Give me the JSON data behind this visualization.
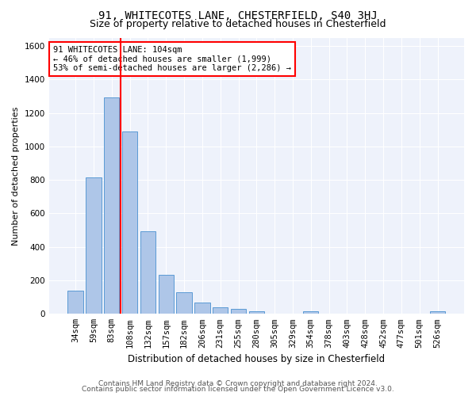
{
  "title1": "91, WHITECOTES LANE, CHESTERFIELD, S40 3HJ",
  "title2": "Size of property relative to detached houses in Chesterfield",
  "xlabel": "Distribution of detached houses by size in Chesterfield",
  "ylabel": "Number of detached properties",
  "categories": [
    "34sqm",
    "59sqm",
    "83sqm",
    "108sqm",
    "132sqm",
    "157sqm",
    "182sqm",
    "206sqm",
    "231sqm",
    "255sqm",
    "280sqm",
    "305sqm",
    "329sqm",
    "354sqm",
    "378sqm",
    "403sqm",
    "428sqm",
    "452sqm",
    "477sqm",
    "501sqm",
    "526sqm"
  ],
  "values": [
    140,
    815,
    1295,
    1090,
    495,
    233,
    130,
    68,
    38,
    28,
    15,
    0,
    0,
    18,
    0,
    0,
    0,
    0,
    0,
    0,
    18
  ],
  "bar_color": "#aec6e8",
  "bar_edge_color": "#5b9bd5",
  "vline_x": 2.5,
  "vline_color": "red",
  "annotation_text": "91 WHITECOTES LANE: 104sqm\n← 46% of detached houses are smaller (1,999)\n53% of semi-detached houses are larger (2,286) →",
  "annotation_box_color": "white",
  "annotation_box_edge": "red",
  "ylim": [
    0,
    1650
  ],
  "yticks": [
    0,
    200,
    400,
    600,
    800,
    1000,
    1200,
    1400,
    1600
  ],
  "bg_color": "#eef2fb",
  "footer1": "Contains HM Land Registry data © Crown copyright and database right 2024.",
  "footer2": "Contains public sector information licensed under the Open Government Licence v3.0.",
  "title1_fontsize": 10,
  "title2_fontsize": 9,
  "xlabel_fontsize": 8.5,
  "ylabel_fontsize": 8,
  "tick_fontsize": 7.5,
  "annotation_fontsize": 7.5,
  "footer_fontsize": 6.5
}
